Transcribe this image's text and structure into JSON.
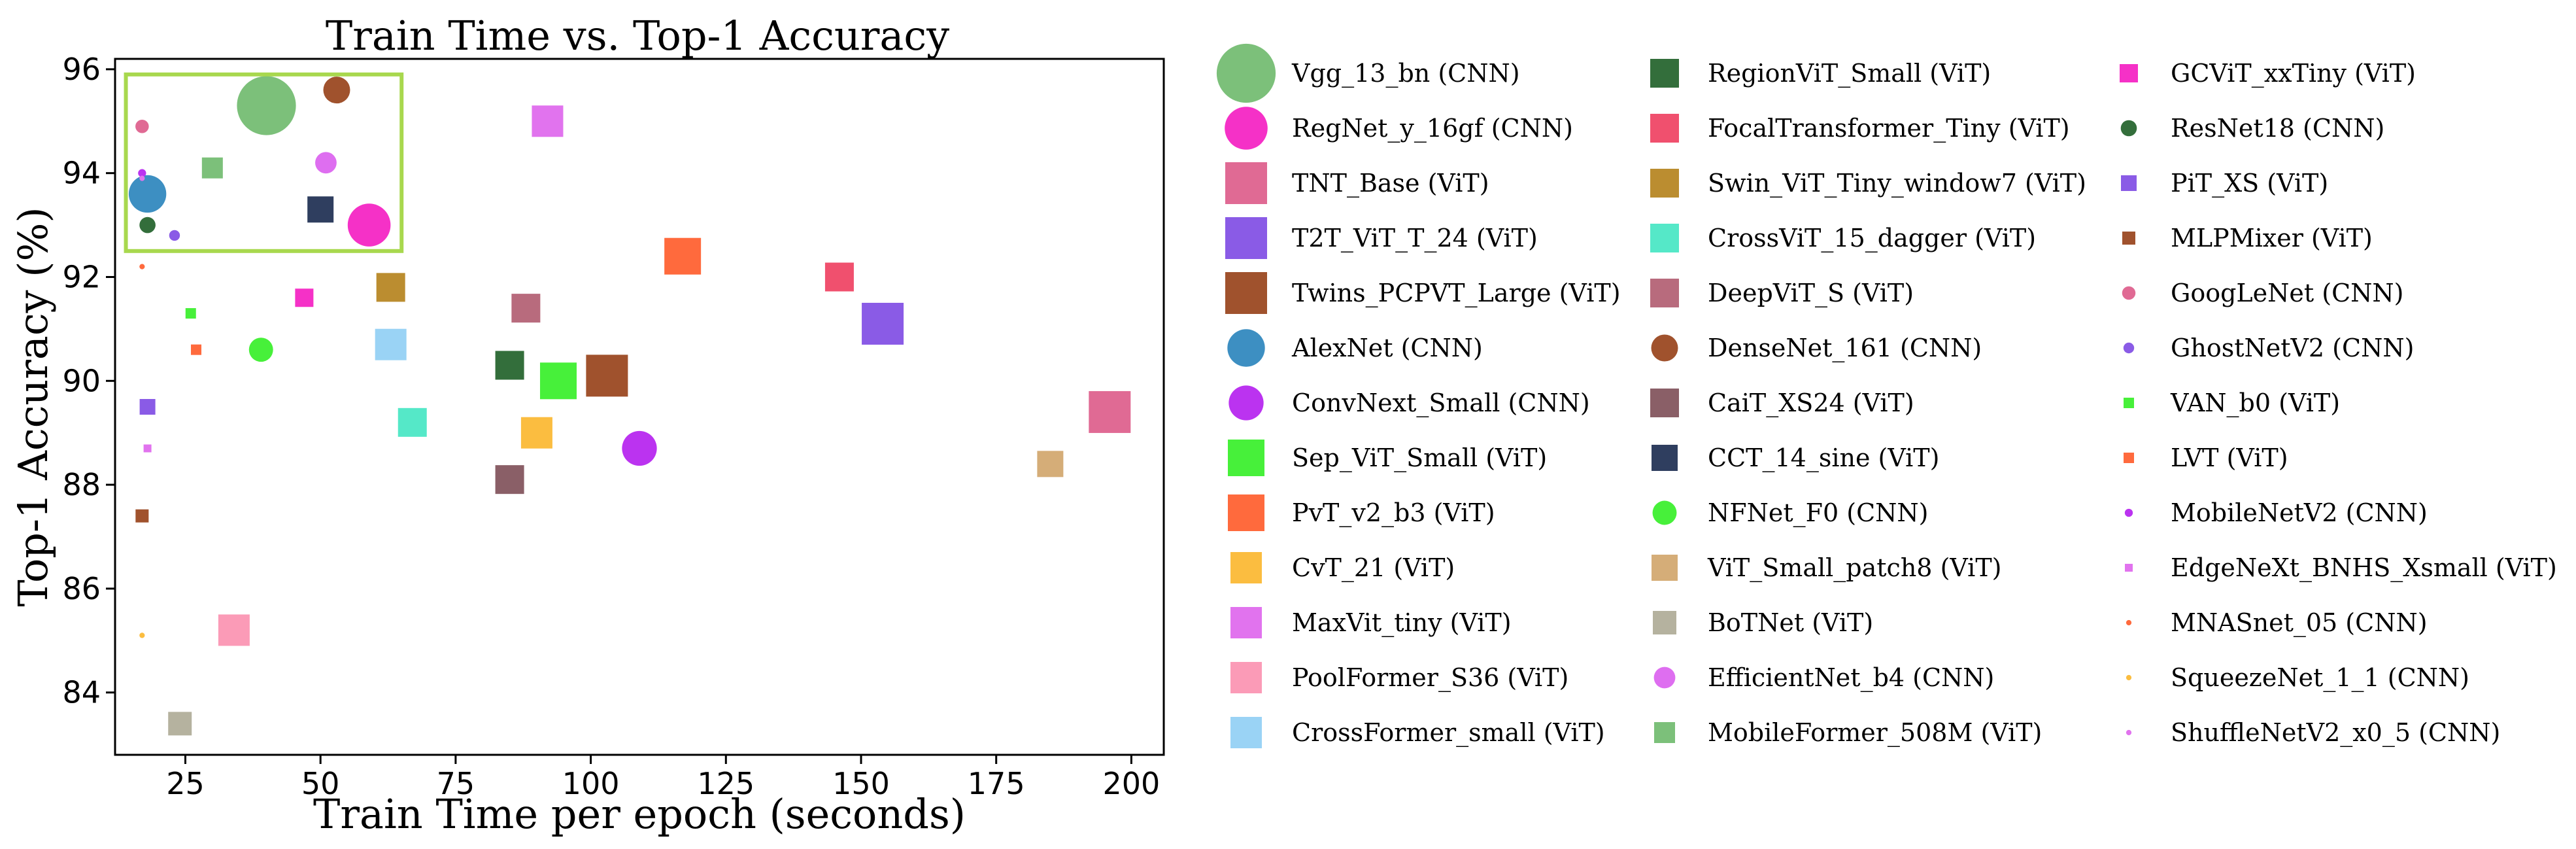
{
  "chart_data": {
    "type": "scatter",
    "title": "Train Time vs. Top-1 Accuracy",
    "xlabel": "Train Time per epoch (seconds)",
    "ylabel": "Top-1 Accuracy (%)",
    "xlim": [
      12,
      206
    ],
    "ylim": [
      82.8,
      96.2
    ],
    "xticks": [
      25,
      50,
      75,
      100,
      125,
      150,
      175,
      200
    ],
    "yticks": [
      84,
      86,
      88,
      90,
      92,
      94,
      96
    ],
    "grid": false,
    "highlight_box": {
      "x": [
        14,
        65
      ],
      "y": [
        92.5,
        95.9
      ],
      "color": "#a8d84e"
    },
    "series": [
      {
        "name": "Vgg_13_bn (CNN)",
        "type": "CNN",
        "color": "#7cc07a",
        "size": 22,
        "x": 40,
        "y": 95.3
      },
      {
        "name": "RegNet_y_16gf (CNN)",
        "type": "CNN",
        "color": "#f531c7",
        "size": 16,
        "x": 59,
        "y": 93.0
      },
      {
        "name": "TNT_Base (ViT)",
        "type": "ViT",
        "color": "#e06a94",
        "size": 16,
        "x": 196,
        "y": 89.4
      },
      {
        "name": "T2T_ViT_T_24 (ViT)",
        "type": "ViT",
        "color": "#8a5be6",
        "size": 16,
        "x": 154,
        "y": 91.1
      },
      {
        "name": "Twins_PCPVT_Large (ViT)",
        "type": "ViT",
        "color": "#a0522d",
        "size": 16,
        "x": 103,
        "y": 90.1
      },
      {
        "name": "AlexNet (CNN)",
        "type": "CNN",
        "color": "#3d8fc2",
        "size": 14,
        "x": 18,
        "y": 93.6
      },
      {
        "name": "ConvNext_Small (CNN)",
        "type": "CNN",
        "color": "#bb33f0",
        "size": 13,
        "x": 109,
        "y": 88.7
      },
      {
        "name": "Sep_ViT_Small (ViT)",
        "type": "ViT",
        "color": "#47f03a",
        "size": 14,
        "x": 94,
        "y": 90.0
      },
      {
        "name": "PvT_v2_b3 (ViT)",
        "type": "ViT",
        "color": "#ff6a3d",
        "size": 14,
        "x": 117,
        "y": 92.4
      },
      {
        "name": "CvT_21 (ViT)",
        "type": "ViT",
        "color": "#fbbd40",
        "size": 12,
        "x": 90,
        "y": 89.0
      },
      {
        "name": "MaxVit_tiny (ViT)",
        "type": "ViT",
        "color": "#e173ee",
        "size": 12,
        "x": 92,
        "y": 95.0
      },
      {
        "name": "PoolFormer_S36 (ViT)",
        "type": "ViT",
        "color": "#fb9bb7",
        "size": 12,
        "x": 34,
        "y": 85.2
      },
      {
        "name": "CrossFormer_small (ViT)",
        "type": "ViT",
        "color": "#9ad3f5",
        "size": 12,
        "x": 63,
        "y": 90.7
      },
      {
        "name": "RegionViT_Small (ViT)",
        "type": "ViT",
        "color": "#336e3b",
        "size": 11,
        "x": 85,
        "y": 90.3
      },
      {
        "name": "FocalTransformer_Tiny (ViT)",
        "type": "ViT",
        "color": "#f0506e",
        "size": 11,
        "x": 146,
        "y": 92.0
      },
      {
        "name": "Swin_ViT_Tiny_window7 (ViT)",
        "type": "ViT",
        "color": "#bb8d30",
        "size": 11,
        "x": 63,
        "y": 91.8
      },
      {
        "name": "CrossViT_15_dagger (ViT)",
        "type": "ViT",
        "color": "#55e8c8",
        "size": 11,
        "x": 67,
        "y": 89.2
      },
      {
        "name": "DeepViT_S (ViT)",
        "type": "ViT",
        "color": "#b86b7d",
        "size": 11,
        "x": 88,
        "y": 91.4
      },
      {
        "name": "DenseNet_161 (CNN)",
        "type": "CNN",
        "color": "#a0522d",
        "size": 10,
        "x": 53,
        "y": 95.6
      },
      {
        "name": "CaiT_XS24 (ViT)",
        "type": "ViT",
        "color": "#8a5f67",
        "size": 11,
        "x": 85,
        "y": 88.1
      },
      {
        "name": "CCT_14_sine (ViT)",
        "type": "ViT",
        "color": "#2f3e5f",
        "size": 10,
        "x": 50,
        "y": 93.3
      },
      {
        "name": "NFNet_F0 (CNN)",
        "type": "CNN",
        "color": "#47f03a",
        "size": 9,
        "x": 39,
        "y": 90.6
      },
      {
        "name": "ViT_Small_patch8 (ViT)",
        "type": "ViT",
        "color": "#d5ad78",
        "size": 10,
        "x": 185,
        "y": 88.4
      },
      {
        "name": "BoTNet (ViT)",
        "type": "ViT",
        "color": "#b5b29f",
        "size": 9,
        "x": 24,
        "y": 83.4
      },
      {
        "name": "EfficientNet_b4 (CNN)",
        "type": "CNN",
        "color": "#de6ef0",
        "size": 8,
        "x": 51,
        "y": 94.2
      },
      {
        "name": "MobileFormer_508M (ViT)",
        "type": "ViT",
        "color": "#7cc07a",
        "size": 8,
        "x": 30,
        "y": 94.1
      },
      {
        "name": "GCViT_xxTiny (ViT)",
        "type": "ViT",
        "color": "#f531c7",
        "size": 7,
        "x": 47,
        "y": 91.6
      },
      {
        "name": "ResNet18 (CNN)",
        "type": "CNN",
        "color": "#336e3b",
        "size": 6,
        "x": 18,
        "y": 93.0
      },
      {
        "name": "PiT_XS (ViT)",
        "type": "ViT",
        "color": "#8a5be6",
        "size": 6,
        "x": 18,
        "y": 89.5
      },
      {
        "name": "MLPMixer (ViT)",
        "type": "ViT",
        "color": "#a0522d",
        "size": 5,
        "x": 17,
        "y": 87.4
      },
      {
        "name": "GoogLeNet (CNN)",
        "type": "CNN",
        "color": "#e06a94",
        "size": 5,
        "x": 17,
        "y": 94.9
      },
      {
        "name": "GhostNetV2 (CNN)",
        "type": "CNN",
        "color": "#8a5be6",
        "size": 4,
        "x": 23,
        "y": 92.8
      },
      {
        "name": "VAN_b0 (ViT)",
        "type": "ViT",
        "color": "#47f03a",
        "size": 4,
        "x": 26,
        "y": 91.3
      },
      {
        "name": "LVT (ViT)",
        "type": "ViT",
        "color": "#ff6a3d",
        "size": 4,
        "x": 27,
        "y": 90.6
      },
      {
        "name": "MobileNetV2 (CNN)",
        "type": "CNN",
        "color": "#bb33f0",
        "size": 3,
        "x": 17,
        "y": 94.0
      },
      {
        "name": "EdgeNeXt_BNHS_Xsmall (ViT)",
        "type": "ViT",
        "color": "#e173ee",
        "size": 3,
        "x": 18,
        "y": 88.7
      },
      {
        "name": "MNASnet_05 (CNN)",
        "type": "CNN",
        "color": "#ff6a3d",
        "size": 2,
        "x": 17,
        "y": 92.2
      },
      {
        "name": "SqueezeNet_1_1 (CNN)",
        "type": "CNN",
        "color": "#fbbd40",
        "size": 2,
        "x": 17,
        "y": 85.1
      },
      {
        "name": "ShuffleNetV2_x0_5 (CNN)",
        "type": "CNN",
        "color": "#e173ee",
        "size": 2,
        "x": 17,
        "y": 93.9
      }
    ]
  }
}
